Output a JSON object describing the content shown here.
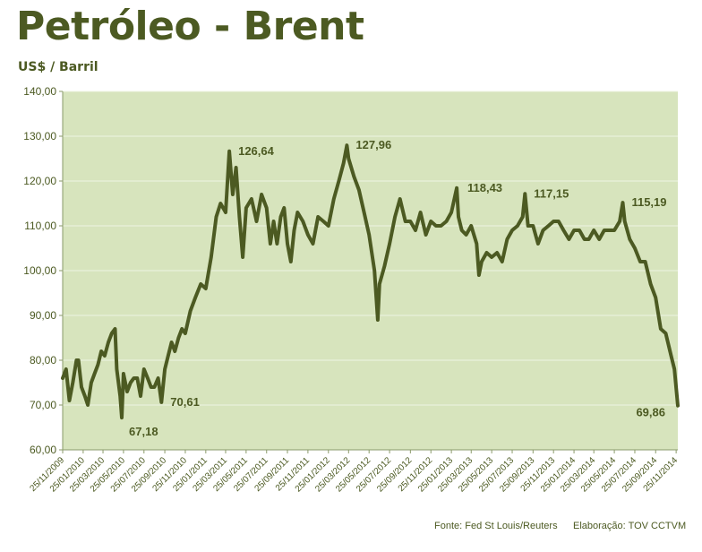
{
  "title": "Petróleo - Brent",
  "subtitle": "US$ / Barril",
  "footer": {
    "source": "Fonte: Fed St Louis/Reuters",
    "credit": "Elaboração: TOV CCTVM"
  },
  "colors": {
    "line": "#4c5a22",
    "plot_bg": "#d7e4bd",
    "grid": "#eef3e2",
    "text": "#4c5a22"
  },
  "chart_data": {
    "type": "line",
    "ylim": [
      60,
      140
    ],
    "yticks": [
      "60,00",
      "70,00",
      "80,00",
      "90,00",
      "100,00",
      "110,00",
      "120,00",
      "130,00",
      "140,00"
    ],
    "ytick_values": [
      60,
      70,
      80,
      90,
      100,
      110,
      120,
      130,
      140
    ],
    "xlim": [
      "2009-11-25",
      "2014-11-30"
    ],
    "xticks": [
      "25/11/2009",
      "25/01/2010",
      "25/03/2010",
      "25/05/2010",
      "25/07/2010",
      "25/09/2010",
      "25/11/2010",
      "25/01/2011",
      "25/03/2011",
      "25/05/2011",
      "25/07/2011",
      "25/09/2011",
      "25/11/2011",
      "25/01/2012",
      "25/03/2012",
      "25/05/2012",
      "25/07/2012",
      "25/09/2012",
      "25/11/2012",
      "25/01/2013",
      "25/03/2013",
      "25/05/2013",
      "25/07/2013",
      "25/09/2013",
      "25/11/2013",
      "25/01/2014",
      "25/03/2014",
      "25/05/2014",
      "25/07/2014",
      "25/09/2014",
      "25/11/2014"
    ],
    "xtick_dates": [
      "2009-11-25",
      "2010-01-25",
      "2010-03-25",
      "2010-05-25",
      "2010-07-25",
      "2010-09-25",
      "2010-11-25",
      "2011-01-25",
      "2011-03-25",
      "2011-05-25",
      "2011-07-25",
      "2011-09-25",
      "2011-11-25",
      "2012-01-25",
      "2012-03-25",
      "2012-05-25",
      "2012-07-25",
      "2012-09-25",
      "2012-11-25",
      "2013-01-25",
      "2013-03-25",
      "2013-05-25",
      "2013-07-25",
      "2013-09-25",
      "2013-11-25",
      "2014-01-25",
      "2014-03-25",
      "2014-05-25",
      "2014-07-25",
      "2014-09-25",
      "2014-11-25"
    ],
    "series": [
      {
        "x": [
          "2009-11-25",
          "2009-12-05",
          "2009-12-15",
          "2009-12-25",
          "2010-01-05",
          "2010-01-11",
          "2010-01-20",
          "2010-01-30",
          "2010-02-08",
          "2010-02-18",
          "2010-02-28",
          "2010-03-10",
          "2010-03-20",
          "2010-03-30",
          "2010-04-10",
          "2010-04-20",
          "2010-04-30",
          "2010-05-05",
          "2010-05-15",
          "2010-05-20",
          "2010-05-25",
          "2010-06-05",
          "2010-06-15",
          "2010-06-25",
          "2010-07-05",
          "2010-07-15",
          "2010-07-25",
          "2010-08-05",
          "2010-08-15",
          "2010-08-25",
          "2010-09-05",
          "2010-09-15",
          "2010-09-25",
          "2010-10-05",
          "2010-10-15",
          "2010-10-25",
          "2010-11-05",
          "2010-11-15",
          "2010-11-25",
          "2010-12-10",
          "2010-12-25",
          "2011-01-10",
          "2011-01-25",
          "2011-02-10",
          "2011-02-25",
          "2011-03-10",
          "2011-03-25",
          "2011-04-05",
          "2011-04-15",
          "2011-04-25",
          "2011-05-05",
          "2011-05-15",
          "2011-05-25",
          "2011-06-10",
          "2011-06-25",
          "2011-07-10",
          "2011-07-25",
          "2011-08-05",
          "2011-08-15",
          "2011-08-25",
          "2011-09-05",
          "2011-09-15",
          "2011-09-25",
          "2011-10-05",
          "2011-10-15",
          "2011-10-25",
          "2011-11-10",
          "2011-11-25",
          "2011-12-10",
          "2011-12-25",
          "2012-01-10",
          "2012-01-25",
          "2012-02-10",
          "2012-02-25",
          "2012-03-10",
          "2012-03-20",
          "2012-03-25",
          "2012-04-10",
          "2012-04-25",
          "2012-05-10",
          "2012-05-25",
          "2012-06-10",
          "2012-06-20",
          "2012-06-25",
          "2012-07-10",
          "2012-07-25",
          "2012-08-10",
          "2012-08-25",
          "2012-09-10",
          "2012-09-25",
          "2012-10-10",
          "2012-10-25",
          "2012-11-10",
          "2012-11-25",
          "2012-12-10",
          "2012-12-25",
          "2013-01-10",
          "2013-01-25",
          "2013-02-10",
          "2013-02-15",
          "2013-02-25",
          "2013-03-10",
          "2013-03-25",
          "2013-04-10",
          "2013-04-17",
          "2013-04-25",
          "2013-05-10",
          "2013-05-25",
          "2013-06-10",
          "2013-06-25",
          "2013-07-10",
          "2013-07-25",
          "2013-08-10",
          "2013-08-25",
          "2013-09-01",
          "2013-09-10",
          "2013-09-25",
          "2013-10-10",
          "2013-10-25",
          "2013-11-10",
          "2013-11-25",
          "2013-12-10",
          "2013-12-25",
          "2014-01-10",
          "2014-01-25",
          "2014-02-10",
          "2014-02-25",
          "2014-03-10",
          "2014-03-25",
          "2014-04-10",
          "2014-04-25",
          "2014-05-10",
          "2014-05-25",
          "2014-06-10",
          "2014-06-19",
          "2014-06-25",
          "2014-07-10",
          "2014-07-25",
          "2014-08-10",
          "2014-08-25",
          "2014-09-10",
          "2014-09-25",
          "2014-10-10",
          "2014-10-25",
          "2014-11-10",
          "2014-11-20",
          "2014-11-30"
        ],
        "y": [
          76,
          78,
          71,
          75,
          80,
          80,
          74,
          72,
          70,
          75,
          77,
          79,
          82,
          81,
          84,
          86,
          87,
          78,
          72,
          67.18,
          77,
          73,
          75,
          76,
          76,
          72,
          78,
          76,
          74,
          74,
          76,
          70.61,
          78,
          81,
          84,
          82,
          85,
          87,
          86,
          91,
          94,
          97,
          96,
          103,
          112,
          115,
          113,
          126.64,
          117,
          123,
          112,
          103,
          114,
          116,
          111,
          117,
          114,
          106,
          111,
          106,
          112,
          114,
          106,
          102,
          109,
          113,
          111,
          108,
          106,
          112,
          111,
          110,
          116,
          120,
          124,
          127.96,
          125,
          121,
          118,
          113,
          108,
          100,
          89,
          97,
          101,
          106,
          112,
          116,
          111,
          111,
          109,
          113,
          108,
          111,
          110,
          110,
          111,
          113,
          118.43,
          112,
          109,
          108,
          110,
          106,
          99,
          102,
          104,
          103,
          104,
          102,
          107,
          109,
          110,
          112,
          117.15,
          110,
          110,
          106,
          109,
          110,
          111,
          111,
          109,
          107,
          109,
          109,
          107,
          107,
          109,
          107,
          109,
          109,
          109,
          111,
          115.19,
          111,
          107,
          105,
          102,
          102,
          97,
          94,
          87,
          86,
          81,
          78,
          69.86
        ]
      }
    ],
    "annotations": [
      {
        "label": "67,18",
        "x": "2010-05-20",
        "y": 67.18,
        "pos": "below-right"
      },
      {
        "label": "70,61",
        "x": "2010-09-15",
        "y": 70.61,
        "pos": "right"
      },
      {
        "label": "126,64",
        "x": "2011-04-05",
        "y": 126.64,
        "pos": "right"
      },
      {
        "label": "127,96",
        "x": "2012-03-20",
        "y": 127.96,
        "pos": "right"
      },
      {
        "label": "118,43",
        "x": "2013-02-15",
        "y": 118.43,
        "pos": "right"
      },
      {
        "label": "117,15",
        "x": "2013-09-01",
        "y": 117.15,
        "pos": "right"
      },
      {
        "label": "115,19",
        "x": "2014-06-19",
        "y": 115.19,
        "pos": "right"
      },
      {
        "label": "69,86",
        "x": "2014-11-30",
        "y": 69.86,
        "pos": "below-left"
      }
    ],
    "grid": "horizontal",
    "legend": "none"
  }
}
